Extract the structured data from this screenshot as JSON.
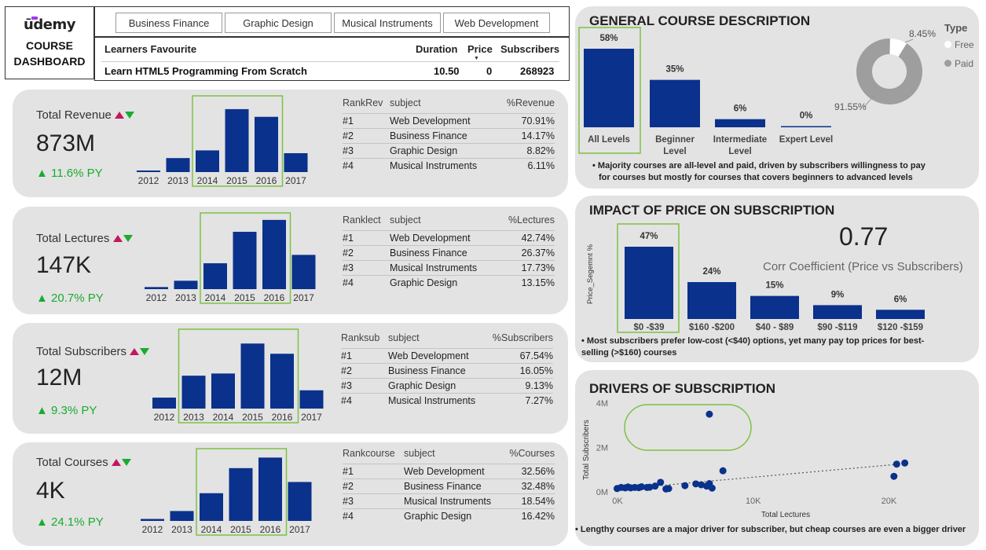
{
  "brand": {
    "logo": "ūdemy",
    "title_line1": "COURSE",
    "title_line2": "DASHBOARD",
    "accent": "#a435f0"
  },
  "tabs": [
    "Business Finance",
    "Graphic Design",
    "Musical Instruments",
    "Web Development"
  ],
  "favourite": {
    "headers": {
      "name": "Learners Favourite",
      "duration": "Duration",
      "price": "Price",
      "subscribers": "Subscribers"
    },
    "row": {
      "name": "Learn HTML5 Programming From Scratch",
      "duration": "10.50",
      "price": "0",
      "subscribers": "268923"
    }
  },
  "colors": {
    "bar": "#0a318b",
    "highlight": "#7cc242",
    "panel": "#e3e3e3",
    "positive": "#1aab2f"
  },
  "kpis": [
    {
      "title": "Total Revenue",
      "value": "873M",
      "py": "▲ 11.6% PY",
      "rank_headers": [
        "RankRev",
        "subject",
        "%Revenue"
      ],
      "ranks": [
        [
          "#1",
          "Web Development",
          "70.91%"
        ],
        [
          "#2",
          "Business Finance",
          "14.17%"
        ],
        [
          "#3",
          "Graphic Design",
          "8.82%"
        ],
        [
          "#4",
          "Musical Instruments",
          "6.11%"
        ]
      ],
      "years": [
        "2012",
        "2013",
        "2014",
        "2015",
        "2016",
        "2017"
      ],
      "bars": [
        0.02,
        0.2,
        0.31,
        0.9,
        0.79,
        0.27
      ]
    },
    {
      "title": "Total Lectures",
      "value": "147K",
      "py": "▲ 20.7% PY",
      "rank_headers": [
        "Ranklect",
        "subject",
        "%Lectures"
      ],
      "ranks": [
        [
          "#1",
          "Web Development",
          "42.74%"
        ],
        [
          "#2",
          "Business Finance",
          "26.37%"
        ],
        [
          "#3",
          "Musical Instruments",
          "17.73%"
        ],
        [
          "#4",
          "Graphic Design",
          "13.15%"
        ]
      ],
      "years": [
        "2012",
        "2013",
        "2014",
        "2015",
        "2016",
        "2017"
      ],
      "bars": [
        0.03,
        0.12,
        0.37,
        0.82,
        0.99,
        0.49
      ]
    },
    {
      "title": "Total Subscribers",
      "value": "12M",
      "py": "▲ 9.3% PY",
      "rank_headers": [
        "Ranksub",
        "subject",
        "%Subscribers"
      ],
      "ranks": [
        [
          "#1",
          "Web Development",
          "67.54%"
        ],
        [
          "#2",
          "Business Finance",
          "16.05%"
        ],
        [
          "#3",
          "Graphic Design",
          "9.13%"
        ],
        [
          "#4",
          "Musical Instruments",
          "7.27%"
        ]
      ],
      "years": [
        "2012",
        "2013",
        "2014",
        "2015",
        "2016",
        "2017"
      ],
      "bars": [
        0.15,
        0.45,
        0.48,
        0.89,
        0.75,
        0.25
      ]
    },
    {
      "title": "Total Courses",
      "value": "4K",
      "py": "▲ 24.1% PY",
      "rank_headers": [
        "Rankcourse",
        "subject",
        "%Courses"
      ],
      "ranks": [
        [
          "#1",
          "Web Development",
          "32.56%"
        ],
        [
          "#2",
          "Business Finance",
          "32.48%"
        ],
        [
          "#3",
          "Musical Instruments",
          "18.54%"
        ],
        [
          "#4",
          "Graphic Design",
          "16.42%"
        ]
      ],
      "years": [
        "2012",
        "2013",
        "2014",
        "2015",
        "2016",
        "2017"
      ],
      "bars": [
        0.03,
        0.15,
        0.42,
        0.8,
        0.96,
        0.59
      ]
    }
  ],
  "general": {
    "title": "GENERAL COURSE DESCRIPTION",
    "note_line1": "• Majority courses are all-level and paid, driven by subscribers willingness to pay",
    "note_line2": "for courses but mostly for courses that covers beginners to advanced levels",
    "type_title": "Type",
    "legend": [
      "Free",
      "Paid"
    ],
    "donut_labels": [
      "8.45%",
      "91.55%"
    ]
  },
  "impact": {
    "title": "IMPACT OF PRICE ON SUBSCRIPTION",
    "corr_value": "0.77",
    "corr_label": "Corr Coefficient (Price vs Subscribers)",
    "ylabel": "Price_Segemnt %",
    "note_line1": "• Most subscribers prefer low-cost (<$40) options, yet many pay top prices for best-",
    "note_line2": "selling (>$160) courses"
  },
  "drivers": {
    "title": "DRIVERS OF SUBSCRIPTION",
    "note": "• Lengthy courses are a major driver for subscriber, but cheap courses are even a bigger driver"
  },
  "chart_data": [
    {
      "type": "bar",
      "title": "Total Revenue by year",
      "categories": [
        "2012",
        "2013",
        "2014",
        "2015",
        "2016",
        "2017"
      ],
      "values": [
        0.02,
        0.2,
        0.31,
        0.9,
        0.79,
        0.27
      ]
    },
    {
      "type": "bar",
      "title": "Total Lectures by year",
      "categories": [
        "2012",
        "2013",
        "2014",
        "2015",
        "2016",
        "2017"
      ],
      "values": [
        0.03,
        0.12,
        0.37,
        0.82,
        0.99,
        0.49
      ]
    },
    {
      "type": "bar",
      "title": "Total Subscribers by year",
      "categories": [
        "2012",
        "2013",
        "2014",
        "2015",
        "2016",
        "2017"
      ],
      "values": [
        0.15,
        0.45,
        0.48,
        0.89,
        0.75,
        0.25
      ]
    },
    {
      "type": "bar",
      "title": "Total Courses by year",
      "categories": [
        "2012",
        "2013",
        "2014",
        "2015",
        "2016",
        "2017"
      ],
      "values": [
        0.03,
        0.15,
        0.42,
        0.8,
        0.96,
        0.59
      ]
    },
    {
      "type": "bar",
      "title": "",
      "categories": [
        "All Levels",
        "Beginner Level",
        "Intermediate Level",
        "Expert Level"
      ],
      "values": [
        58,
        35,
        6,
        0
      ],
      "labels": [
        "58%",
        "35%",
        "6%",
        "0%"
      ],
      "unit": "%"
    },
    {
      "type": "pie",
      "title": "Type",
      "categories": [
        "Free",
        "Paid"
      ],
      "values": [
        8.45,
        91.55
      ],
      "colors": [
        "#ffffff",
        "#9e9e9e"
      ]
    },
    {
      "type": "bar",
      "title": "",
      "ylabel": "Price_Segemnt %",
      "categories": [
        "$0 -$39",
        "$160 -$200",
        "$40 - $89",
        "$90 -$119",
        "$120 -$159"
      ],
      "values": [
        47,
        24,
        15,
        9,
        6
      ],
      "labels": [
        "47%",
        "24%",
        "15%",
        "9%",
        "6%"
      ]
    },
    {
      "type": "scatter",
      "title": "",
      "xlabel": "Total Lectures",
      "ylabel": "Total Subscribers",
      "xlim": [
        0,
        22000
      ],
      "ylim": [
        0,
        4000000
      ],
      "xticks": [
        "0K",
        "10K",
        "20K"
      ],
      "yticks": [
        "0M",
        "2M",
        "4M"
      ],
      "points": [
        [
          200,
          150000
        ],
        [
          500,
          200000
        ],
        [
          800,
          180000
        ],
        [
          1000,
          220000
        ],
        [
          1200,
          180000
        ],
        [
          1500,
          200000
        ],
        [
          1800,
          190000
        ],
        [
          2000,
          230000
        ],
        [
          2400,
          200000
        ],
        [
          2600,
          210000
        ],
        [
          3000,
          260000
        ],
        [
          3400,
          430000
        ],
        [
          3800,
          130000
        ],
        [
          4000,
          150000
        ],
        [
          5200,
          280000
        ],
        [
          6000,
          360000
        ],
        [
          6400,
          320000
        ],
        [
          6800,
          260000
        ],
        [
          7000,
          370000
        ],
        [
          7200,
          170000
        ],
        [
          7000,
          3500000
        ],
        [
          8000,
          950000
        ],
        [
          20600,
          700000
        ],
        [
          20800,
          1250000
        ],
        [
          21400,
          1300000
        ]
      ],
      "trendline": [
        [
          0,
          100000
        ],
        [
          21000,
          1250000
        ]
      ]
    }
  ]
}
